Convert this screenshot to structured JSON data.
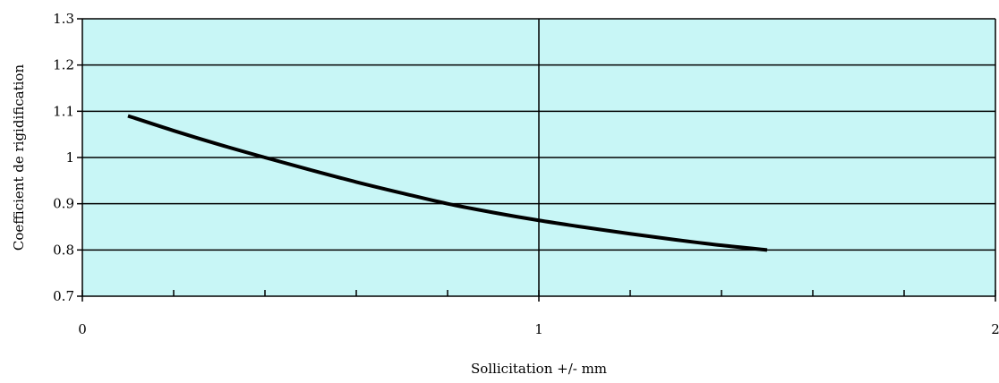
{
  "chart_data": {
    "type": "line",
    "title": "",
    "xlabel": "Sollicitation +/- mm",
    "ylabel": "Coefficient de rigidification",
    "xlim": [
      0,
      2
    ],
    "ylim": [
      0.7,
      1.3
    ],
    "x_ticks": [
      0,
      1,
      2
    ],
    "x_tick_labels": [
      "0",
      "1",
      "2"
    ],
    "x_minor_tick_step": 0.2,
    "y_ticks": [
      0.7,
      0.8,
      0.9,
      1.0,
      1.1,
      1.2,
      1.3
    ],
    "y_tick_labels": [
      "0.7",
      "0.8",
      "0.9",
      "1",
      "1.1",
      "1.2",
      "1.3"
    ],
    "grid": "horizontal major gridlines and vertical gridline at x = 1",
    "legend": "none",
    "colors": {
      "plot_background": "#c8f6f6",
      "line": "#000000",
      "grid": "#000000"
    },
    "series": [
      {
        "x": [
          0.1,
          0.2,
          0.3,
          0.4,
          0.5,
          0.6,
          0.7,
          0.8,
          0.9,
          1.0,
          1.1,
          1.2,
          1.3,
          1.4,
          1.5
        ],
        "values": [
          1.09,
          1.058,
          1.028,
          1.0,
          0.973,
          0.947,
          0.923,
          0.9,
          0.881,
          0.864,
          0.849,
          0.835,
          0.822,
          0.81,
          0.8
        ]
      }
    ]
  }
}
